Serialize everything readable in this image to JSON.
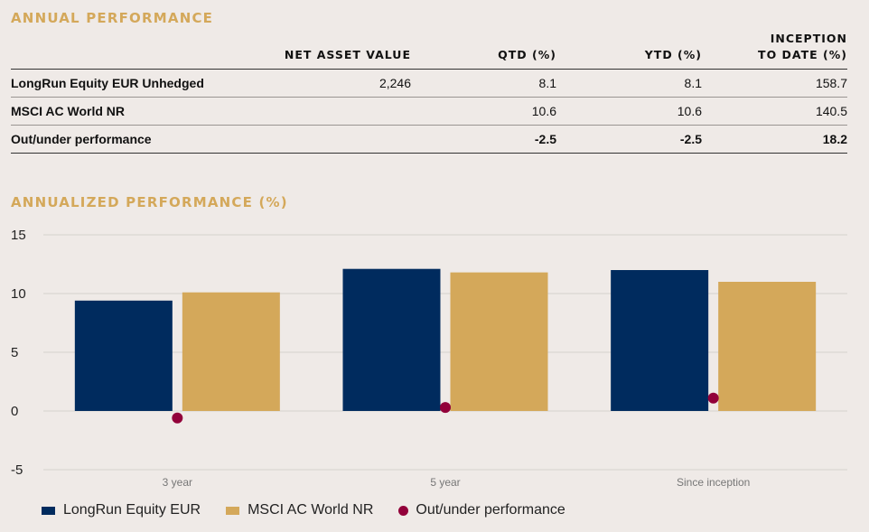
{
  "table": {
    "title": "ANNUAL PERFORMANCE",
    "headers": [
      "",
      "NET ASSET VALUE",
      "QTD (%)",
      "YTD (%)",
      "INCEPTION\nTO DATE (%)"
    ],
    "rows": [
      {
        "name": "LongRun Equity EUR Unhedged",
        "nav": "2,246",
        "qtd": "8.1",
        "ytd": "8.1",
        "itd": "158.7"
      },
      {
        "name": "MSCI AC World NR",
        "nav": "",
        "qtd": "10.6",
        "ytd": "10.6",
        "itd": "140.5"
      },
      {
        "name": "Out/under performance",
        "nav": "",
        "qtd": "-2.5",
        "ytd": "-2.5",
        "itd": "18.2"
      }
    ]
  },
  "chart_data": {
    "type": "bar",
    "title": "ANNUALIZED PERFORMANCE (%)",
    "categories": [
      "3 year",
      "5 year",
      "Since inception"
    ],
    "series": [
      {
        "name": "LongRun Equity EUR",
        "type": "bar",
        "color": "#002b5e",
        "values": [
          9.4,
          12.1,
          12.0
        ]
      },
      {
        "name": "MSCI AC World NR",
        "type": "bar",
        "color": "#d4a85a",
        "values": [
          10.1,
          11.8,
          11.0
        ]
      },
      {
        "name": "Out/under performance",
        "type": "scatter",
        "color": "#92003a",
        "values": [
          -0.6,
          0.3,
          1.1
        ]
      }
    ],
    "ylim": [
      -5,
      15
    ],
    "yticks": [
      15,
      10,
      5,
      0,
      -5
    ],
    "grid": true,
    "legend": "bottom-left"
  }
}
